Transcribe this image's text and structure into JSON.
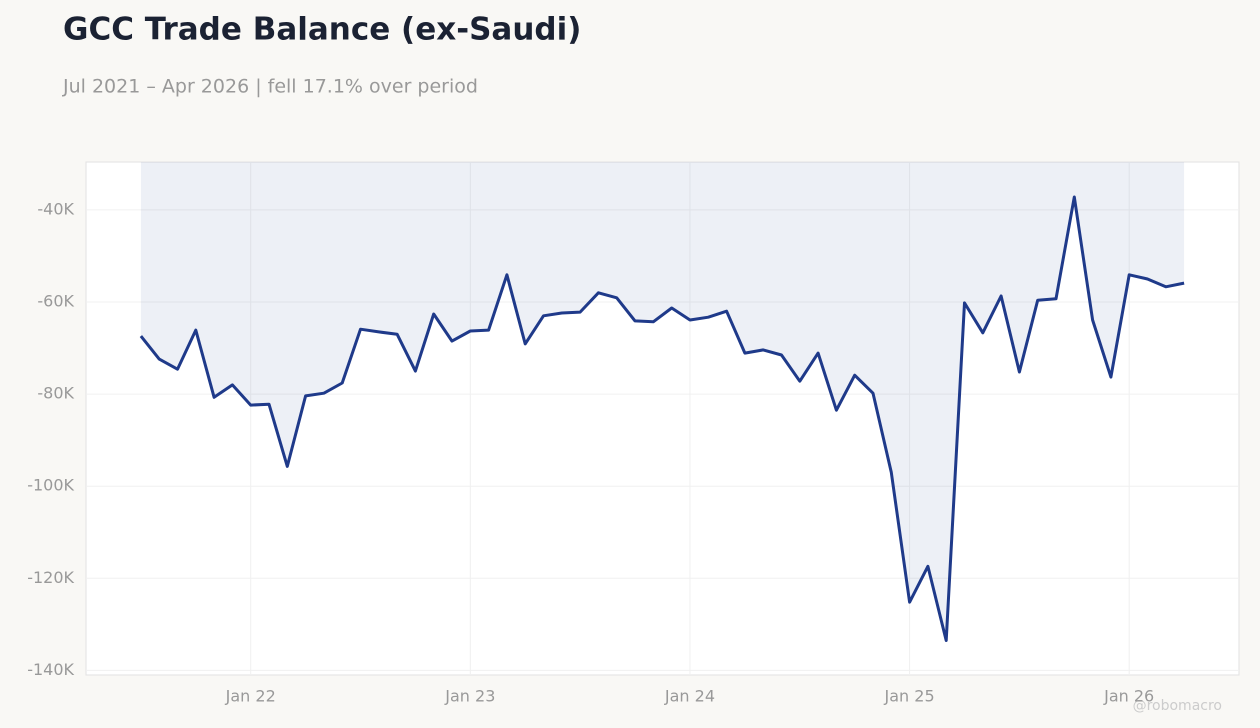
{
  "chart_data": {
    "type": "line",
    "title": "GCC Trade Balance (ex-Saudi)",
    "subtitle": "Jul 2021 – Apr 2026 | fell 17.1% over period",
    "watermark": "@robomacro",
    "x": [
      "2021-07",
      "2021-08",
      "2021-09",
      "2021-10",
      "2021-11",
      "2021-12",
      "2022-01",
      "2022-02",
      "2022-03",
      "2022-04",
      "2022-05",
      "2022-06",
      "2022-07",
      "2022-08",
      "2022-09",
      "2022-10",
      "2022-11",
      "2022-12",
      "2023-01",
      "2023-02",
      "2023-03",
      "2023-04",
      "2023-05",
      "2023-06",
      "2023-07",
      "2023-08",
      "2023-09",
      "2023-10",
      "2023-11",
      "2023-12",
      "2024-01",
      "2024-02",
      "2024-03",
      "2024-04",
      "2024-05",
      "2024-06",
      "2024-07",
      "2024-08",
      "2024-09",
      "2024-10",
      "2024-11",
      "2024-12",
      "2025-01",
      "2025-02",
      "2025-03",
      "2025-04",
      "2025-05",
      "2025-06",
      "2025-07",
      "2025-08",
      "2025-09",
      "2025-10",
      "2025-11",
      "2025-12",
      "2026-01",
      "2026-02",
      "2026-03",
      "2026-04"
    ],
    "series": [
      {
        "color": "#1f3a8a",
        "values": [
          -67400,
          -72400,
          -74600,
          -66100,
          -80700,
          -78000,
          -82400,
          -82200,
          -95700,
          -80400,
          -79800,
          -77600,
          -65900,
          -66500,
          -67000,
          -75000,
          -62600,
          -68500,
          -66300,
          -66100,
          -54100,
          -69100,
          -63000,
          -62400,
          -62200,
          -58000,
          -59100,
          -64100,
          -64300,
          -61300,
          -63900,
          -63300,
          -62000,
          -71100,
          -70400,
          -71500,
          -77200,
          -71100,
          -83500,
          -75900,
          -79800,
          -97000,
          -125200,
          -117400,
          -133500,
          -60200,
          -66700,
          -58700,
          -75200,
          -59600,
          -59300,
          -37200,
          -63900,
          -76300,
          -54100,
          -55000,
          -56700,
          -55900
        ]
      }
    ],
    "xlim": [
      "2021-04",
      "2026-07"
    ],
    "xticks": [
      {
        "value": "2022-01",
        "label": "Jan 22"
      },
      {
        "value": "2023-01",
        "label": "Jan 23"
      },
      {
        "value": "2024-01",
        "label": "Jan 24"
      },
      {
        "value": "2025-01",
        "label": "Jan 25"
      },
      {
        "value": "2026-01",
        "label": "Jan 26"
      }
    ],
    "ylim": [
      -141000,
      -29600
    ],
    "yticks": [
      {
        "value": -40000,
        "label": "-40K"
      },
      {
        "value": -60000,
        "label": "-60K"
      },
      {
        "value": -80000,
        "label": "-80K"
      },
      {
        "value": -100000,
        "label": "-100K"
      },
      {
        "value": -120000,
        "label": "-120K"
      },
      {
        "value": -140000,
        "label": "-140K"
      }
    ],
    "grid": true
  }
}
